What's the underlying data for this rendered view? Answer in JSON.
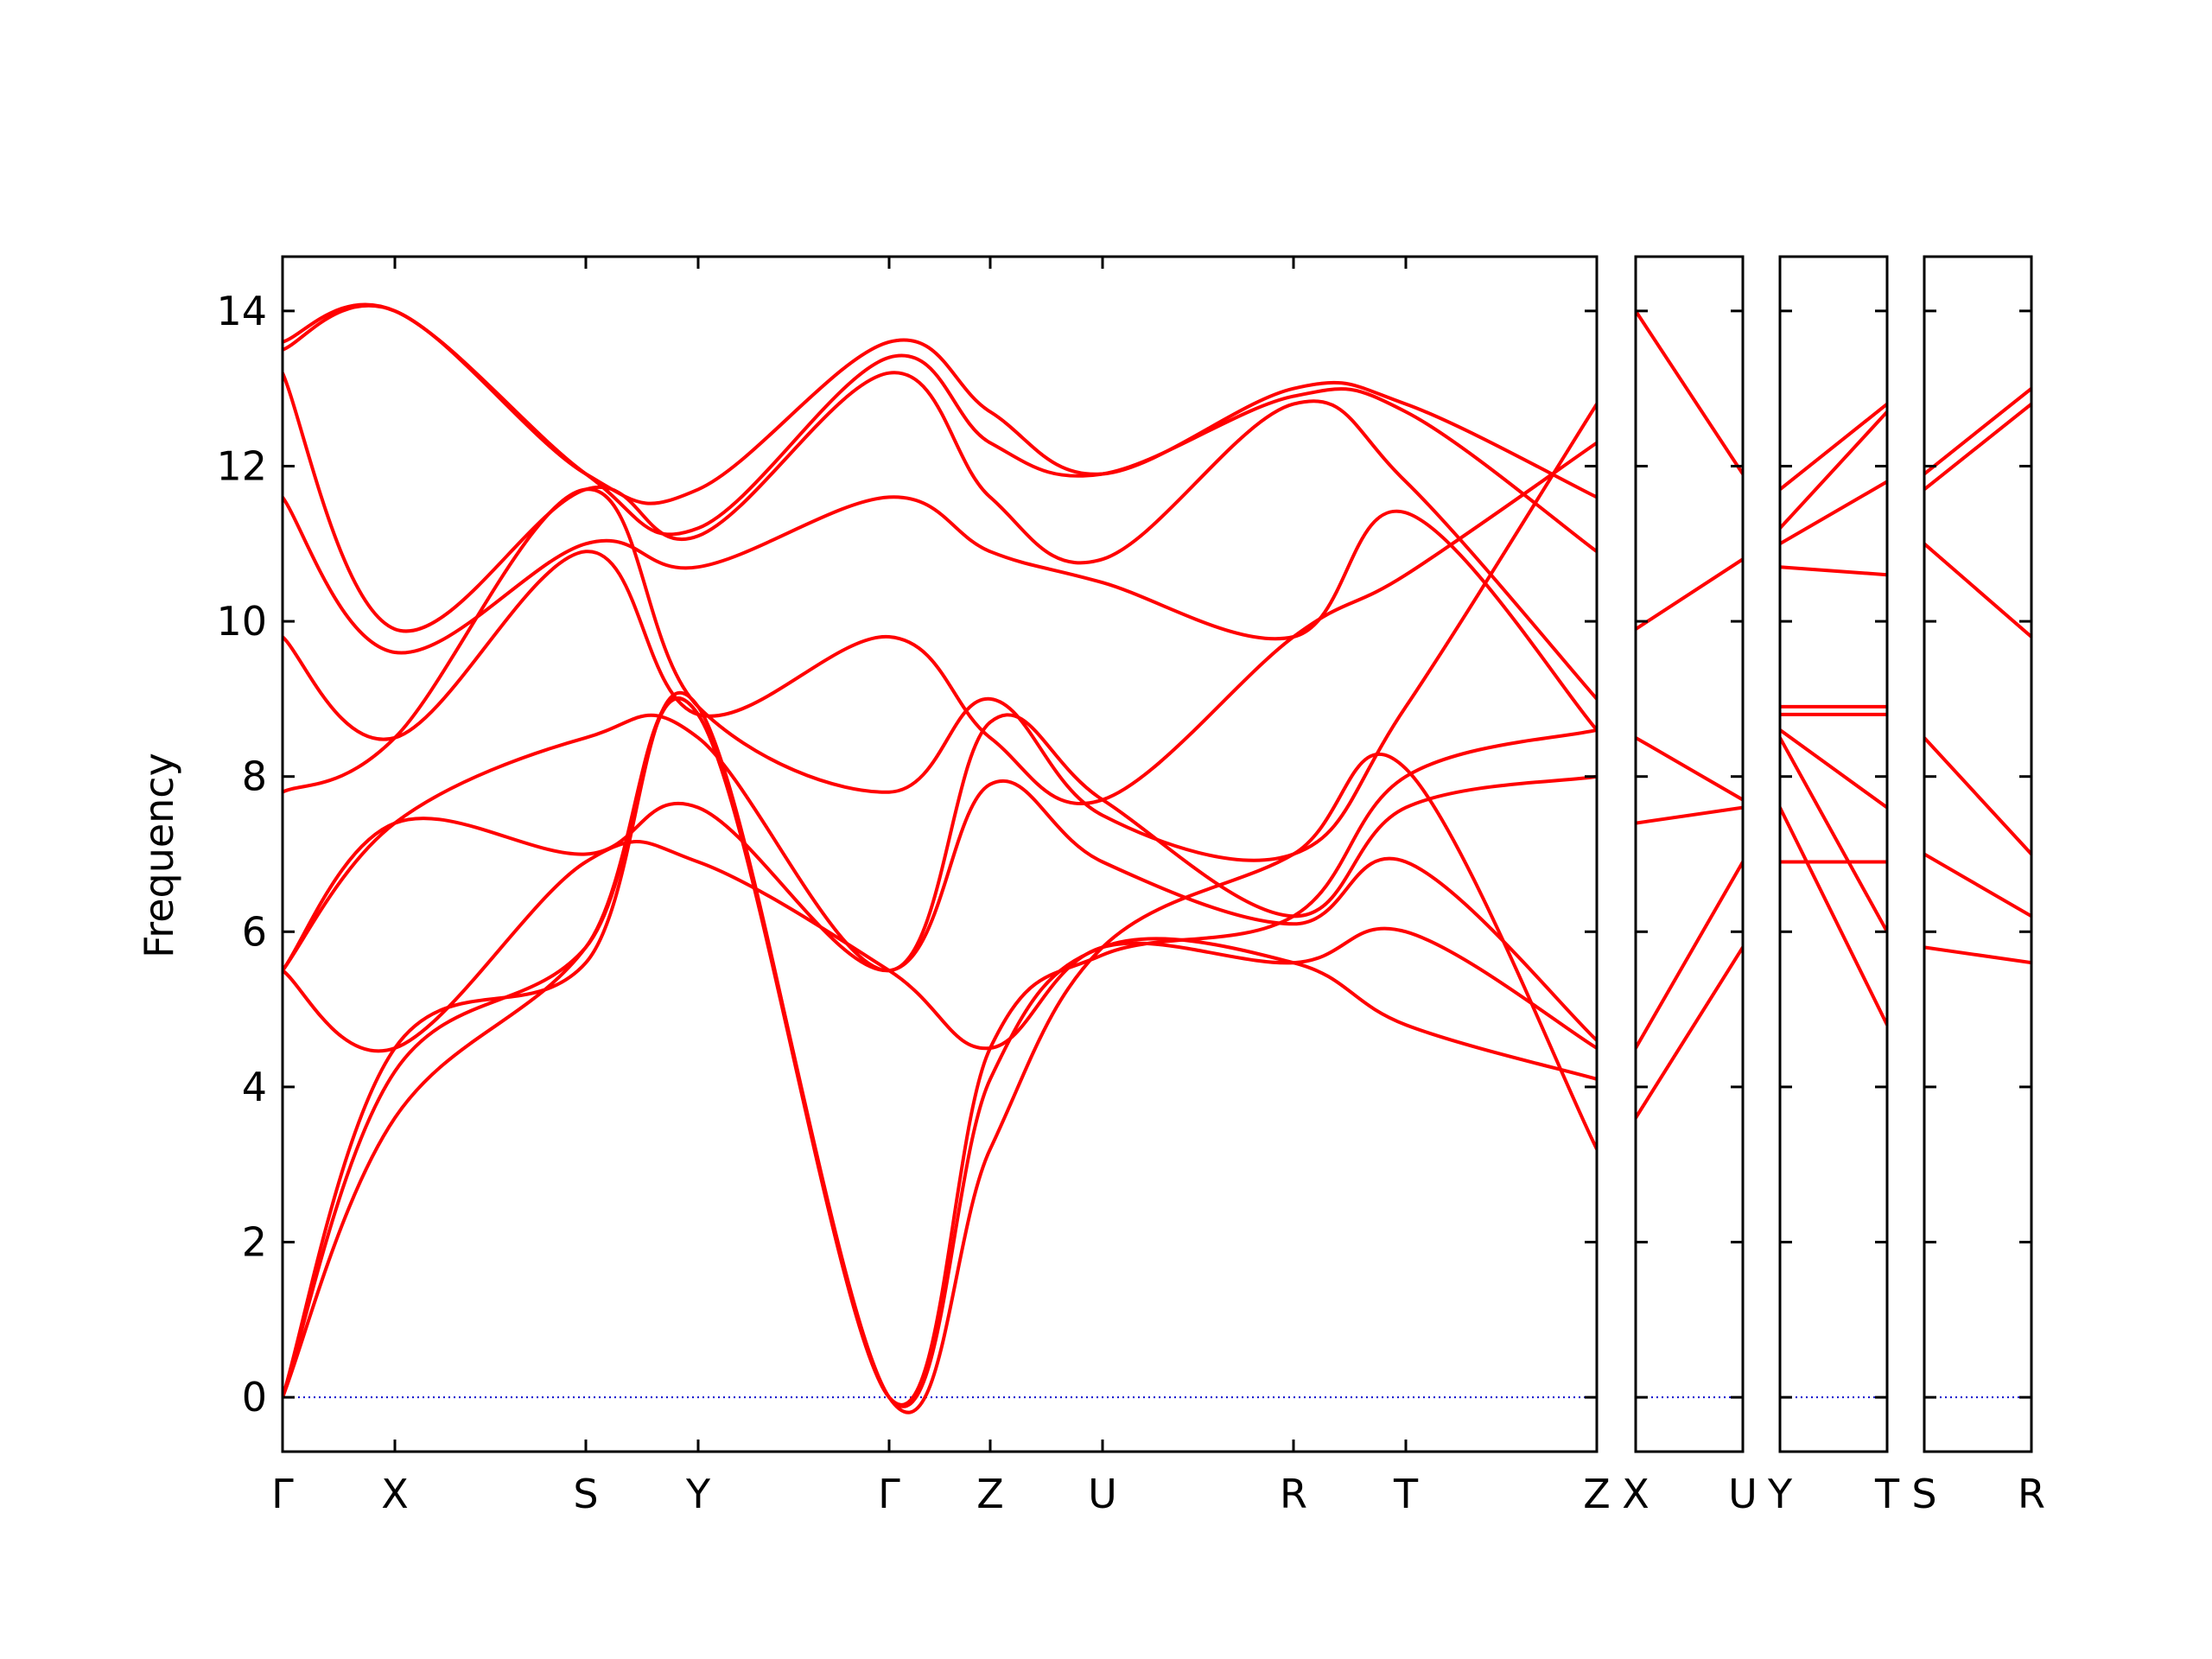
{
  "chart_data": {
    "type": "line",
    "ylabel": "Frequency",
    "ylim": [
      -0.7,
      14.7
    ],
    "y_ticks": [
      0,
      2,
      4,
      6,
      8,
      10,
      12,
      14
    ],
    "grid": false,
    "line_color": "#ff0000",
    "zero_line_color": "#0000cc",
    "panels": [
      {
        "labels": [
          "Γ",
          "X",
          "S",
          "Y",
          "Γ",
          "Z",
          "U",
          "R",
          "T",
          "Z"
        ],
        "x": [
          0,
          0.5,
          1.35,
          1.85,
          2.7,
          3.15,
          3.65,
          4.5,
          5.0,
          5.85
        ],
        "bands": [
          {
            "x": [
              0,
              0.5,
              1.35,
              1.85,
              2.7,
              3.15,
              3.65,
              4.5,
              5.0,
              5.85
            ],
            "y": [
              13.5,
              14.0,
              11.9,
              11.7,
              13.6,
              12.7,
              11.9,
              13.0,
              12.8,
              11.6
            ]
          },
          {
            "x": [
              0,
              0.5,
              1.35,
              1.85,
              2.7,
              3.15,
              3.65,
              4.5,
              5.0,
              5.85
            ],
            "y": [
              13.6,
              14.0,
              11.9,
              11.2,
              13.4,
              12.3,
              11.9,
              12.9,
              12.7,
              10.9
            ]
          },
          {
            "x": [
              0,
              0.5,
              1.35,
              1.85,
              2.7,
              3.15,
              3.65,
              4.5,
              5.0,
              5.85
            ],
            "y": [
              13.2,
              9.9,
              11.7,
              11.1,
              13.2,
              11.6,
              10.8,
              12.8,
              11.8,
              9.0
            ]
          },
          {
            "x": [
              0,
              0.5,
              1.35,
              1.85,
              2.7,
              3.15,
              3.65,
              4.5,
              5.0,
              5.85
            ],
            "y": [
              11.6,
              9.6,
              11.0,
              10.7,
              11.6,
              10.9,
              10.5,
              9.8,
              11.4,
              8.6
            ]
          },
          {
            "x": [
              0,
              0.5,
              1.35,
              1.85,
              2.7,
              3.15,
              3.65,
              4.5,
              5.0,
              5.85
            ],
            "y": [
              9.8,
              8.5,
              10.9,
              8.8,
              9.8,
              8.5,
              7.7,
              9.8,
              10.6,
              12.3
            ]
          },
          {
            "x": [
              0,
              0.5,
              1.35,
              1.85,
              2.7,
              3.15,
              3.65,
              4.5,
              5.0,
              5.85
            ],
            "y": [
              7.8,
              8.5,
              11.7,
              8.9,
              7.8,
              9.0,
              7.5,
              7.0,
              8.9,
              12.8
            ]
          },
          {
            "x": [
              0,
              0.5,
              1.35,
              1.85,
              2.7,
              3.15,
              3.65,
              4.5,
              5.0,
              5.85
            ],
            "y": [
              5.5,
              7.4,
              8.5,
              8.5,
              5.5,
              8.7,
              7.7,
              6.2,
              7.6,
              8.0
            ]
          },
          {
            "x": [
              0,
              0.5,
              1.35,
              1.85,
              2.7,
              3.15,
              3.65,
              4.5,
              5.0,
              5.85
            ],
            "y": [
              5.5,
              7.4,
              7.0,
              7.6,
              5.5,
              7.9,
              6.9,
              6.1,
              6.9,
              4.6
            ]
          },
          {
            "x": [
              0,
              0.5,
              1.35,
              1.85,
              2.7,
              3.15,
              3.65,
              4.5,
              5.0,
              5.85
            ],
            "y": [
              5.5,
              4.5,
              6.9,
              6.9,
              5.5,
              4.5,
              5.8,
              5.6,
              6.0,
              4.5
            ]
          },
          {
            "x": [
              0,
              0.5,
              1.35,
              1.85,
              2.7,
              3.15,
              3.65,
              4.5,
              5.0,
              5.85
            ],
            "y": [
              0,
              4.2,
              5.8,
              8.8,
              0,
              4.1,
              5.8,
              5.6,
              4.8,
              4.1
            ]
          },
          {
            "x": [
              0,
              0.5,
              1.35,
              1.85,
              2.7,
              3.15,
              3.65,
              4.5,
              5.0,
              5.85
            ],
            "y": [
              0,
              3.6,
              5.8,
              8.8,
              0,
              3.2,
              5.8,
              7.0,
              8.1,
              3.2
            ]
          },
          {
            "x": [
              0,
              0.5,
              1.35,
              1.85,
              2.7,
              3.15,
              3.65,
              4.5,
              5.0,
              5.85
            ],
            "y": [
              0,
              4.5,
              5.6,
              8.9,
              0,
              4.5,
              5.7,
              6.2,
              8.0,
              8.6
            ]
          }
        ]
      },
      {
        "labels": [
          "X",
          "U"
        ],
        "x": [
          0,
          0.5
        ],
        "bands": [
          {
            "x": [
              0,
              0.5
            ],
            "y": [
              14.0,
              11.9
            ]
          },
          {
            "x": [
              0,
              0.5
            ],
            "y": [
              9.9,
              10.8
            ]
          },
          {
            "x": [
              0,
              0.5
            ],
            "y": [
              8.5,
              7.7
            ]
          },
          {
            "x": [
              0,
              0.5
            ],
            "y": [
              7.4,
              7.6
            ]
          },
          {
            "x": [
              0,
              0.5
            ],
            "y": [
              4.5,
              6.9
            ]
          },
          {
            "x": [
              0,
              0.5
            ],
            "y": [
              3.6,
              5.8
            ]
          }
        ]
      },
      {
        "labels": [
          "Y",
          "T"
        ],
        "x": [
          0,
          0.5
        ],
        "bands": [
          {
            "x": [
              0,
              0.5
            ],
            "y": [
              11.7,
              12.8
            ]
          },
          {
            "x": [
              0,
              0.5
            ],
            "y": [
              11.2,
              12.7
            ]
          },
          {
            "x": [
              0,
              0.5
            ],
            "y": [
              11.0,
              11.8
            ]
          },
          {
            "x": [
              0,
              0.5
            ],
            "y": [
              10.7,
              10.6
            ]
          },
          {
            "x": [
              0,
              0.5
            ],
            "y": [
              8.9,
              8.9
            ]
          },
          {
            "x": [
              0,
              0.5
            ],
            "y": [
              8.8,
              8.8
            ]
          },
          {
            "x": [
              0,
              0.5
            ],
            "y": [
              8.6,
              7.6
            ]
          },
          {
            "x": [
              0,
              0.5
            ],
            "y": [
              8.5,
              6.0
            ]
          },
          {
            "x": [
              0,
              0.5
            ],
            "y": [
              7.6,
              4.8
            ]
          },
          {
            "x": [
              0,
              0.5
            ],
            "y": [
              6.9,
              6.9
            ]
          }
        ]
      },
      {
        "labels": [
          "S",
          "R"
        ],
        "x": [
          0,
          0.5
        ],
        "bands": [
          {
            "x": [
              0,
              0.5
            ],
            "y": [
              11.9,
              13.0
            ]
          },
          {
            "x": [
              0,
              0.5
            ],
            "y": [
              11.7,
              12.8
            ]
          },
          {
            "x": [
              0,
              0.5
            ],
            "y": [
              11.0,
              9.8
            ]
          },
          {
            "x": [
              0,
              0.5
            ],
            "y": [
              8.5,
              7.0
            ]
          },
          {
            "x": [
              0,
              0.5
            ],
            "y": [
              7.0,
              6.2
            ]
          },
          {
            "x": [
              0,
              0.5
            ],
            "y": [
              5.8,
              5.6
            ]
          }
        ]
      }
    ]
  }
}
